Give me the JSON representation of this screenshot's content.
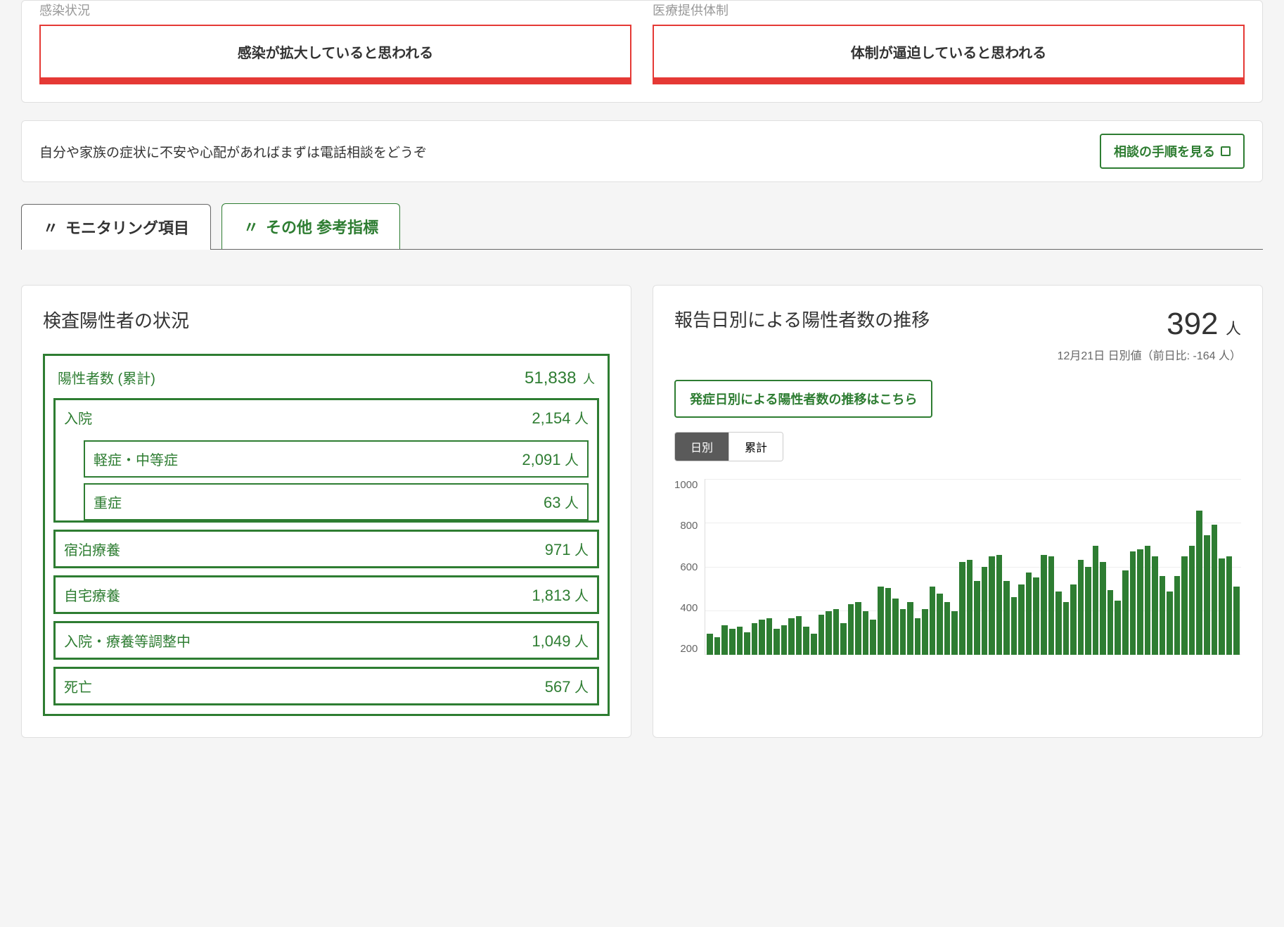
{
  "colors": {
    "green": "#2e7d32",
    "red": "#e53935",
    "bg": "#f5f5f5"
  },
  "topSection": {
    "left": {
      "label": "感染状況",
      "message": "感染が拡大していると思われる"
    },
    "right": {
      "label": "医療提供体制",
      "message": "体制が逼迫していると思われる"
    }
  },
  "infoBar": {
    "text": "自分や家族の症状に不安や心配があればまずは電話相談をどうぞ",
    "buttonLabel": "相談の手順を見る"
  },
  "tabs": {
    "active": "モニタリング項目",
    "inactive": "その他 参考指標"
  },
  "statusCard": {
    "title": "検査陽性者の状況",
    "unit": "人",
    "total": {
      "label": "陽性者数 (累計)",
      "value": "51,838"
    },
    "rows": [
      {
        "label": "入院",
        "value": "2,154",
        "children": [
          {
            "label": "軽症・中等症",
            "value": "2,091"
          },
          {
            "label": "重症",
            "value": "63"
          }
        ]
      },
      {
        "label": "宿泊療養",
        "value": "971"
      },
      {
        "label": "自宅療養",
        "value": "1,813"
      },
      {
        "label": "入院・療養等調整中",
        "value": "1,049"
      },
      {
        "label": "死亡",
        "value": "567"
      }
    ]
  },
  "chartCard": {
    "title": "報告日別による陽性者数の推移",
    "countValue": "392",
    "countUnit": "人",
    "subText": "12月21日 日別値（前日比: -164 人）",
    "linkLabel": "発症日別による陽性者数の推移はこちら",
    "toggle": {
      "active": "日別",
      "inactive": "累計"
    },
    "chart": {
      "type": "bar",
      "ylim": [
        0,
        1000
      ],
      "ytick_step": 200,
      "yticks": [
        "1000",
        "800",
        "600",
        "400",
        "200"
      ],
      "bar_color": "#2e7d32",
      "grid_color": "#eeeeee",
      "values": [
        120,
        100,
        170,
        150,
        160,
        130,
        180,
        200,
        210,
        150,
        170,
        210,
        220,
        160,
        120,
        230,
        250,
        260,
        180,
        290,
        300,
        250,
        200,
        390,
        380,
        320,
        260,
        300,
        210,
        260,
        390,
        350,
        300,
        250,
        530,
        540,
        420,
        500,
        560,
        570,
        420,
        330,
        400,
        470,
        440,
        570,
        560,
        360,
        300,
        400,
        540,
        500,
        620,
        530,
        370,
        310,
        480,
        590,
        600,
        620,
        560,
        450,
        360,
        450,
        560,
        620,
        820,
        680,
        740,
        550,
        560,
        390
      ]
    }
  }
}
